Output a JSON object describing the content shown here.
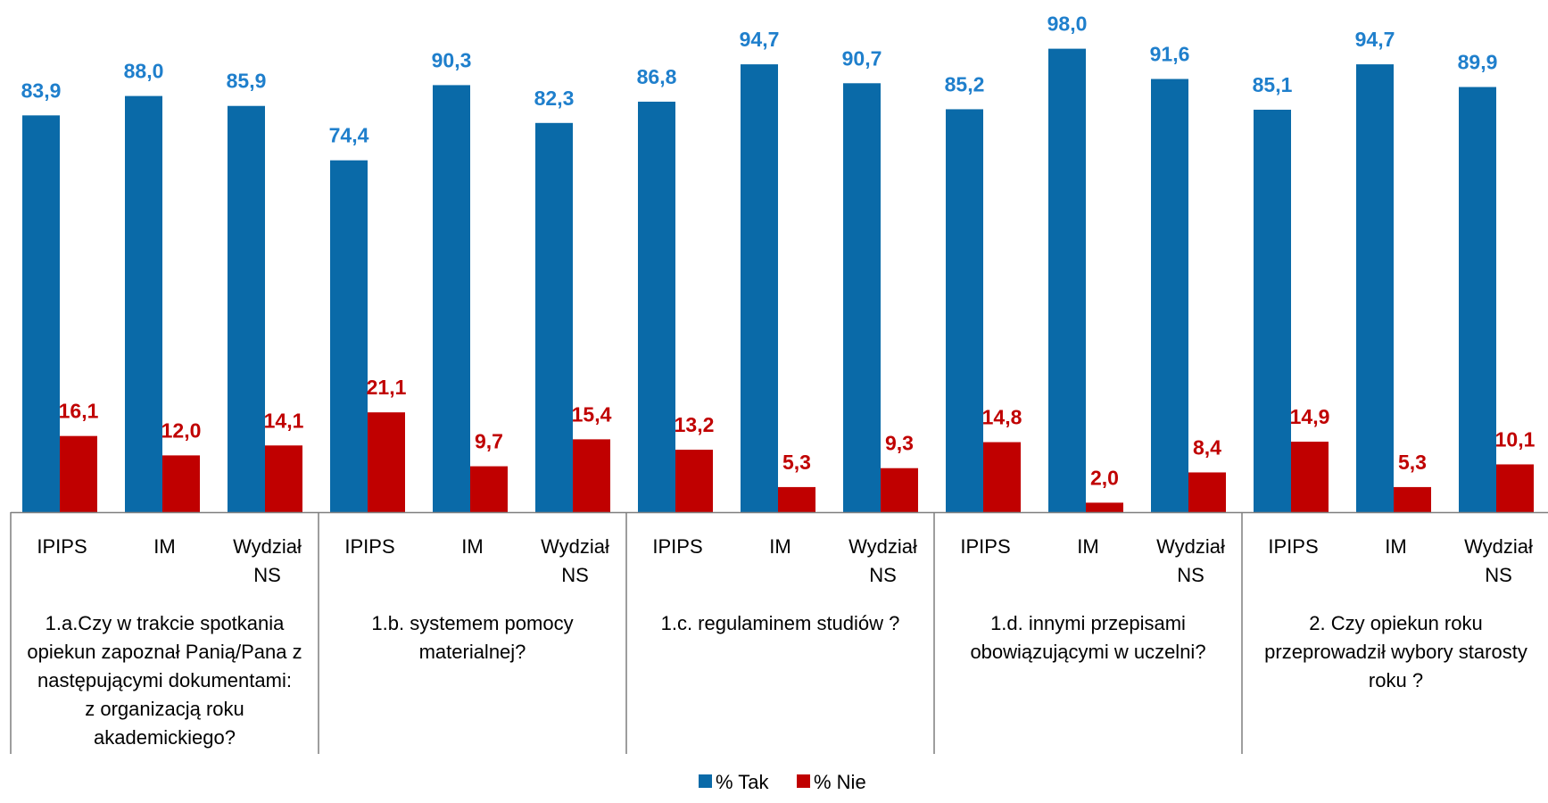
{
  "chart_data": {
    "type": "bar",
    "title": "",
    "xlabel": "",
    "ylabel": "",
    "ylim": [
      0,
      100
    ],
    "grid": false,
    "legend_position": "bottom",
    "groups": [
      {
        "label_lines": [
          "1.a.Czy w trakcie spotkania",
          "opiekun zapoznał Panią/Pana z",
          "następującymi dokumentami:",
          "z organizacją roku",
          "akademickiego?"
        ],
        "categories": [
          "IPIPS",
          "IM",
          "Wydział NS"
        ]
      },
      {
        "label_lines": [
          "1.b.  systemem pomocy",
          "materialnej?"
        ],
        "categories": [
          "IPIPS",
          "IM",
          "Wydział NS"
        ]
      },
      {
        "label_lines": [
          "1.c.   regulaminem studiów ?"
        ],
        "categories": [
          "IPIPS",
          "IM",
          "Wydział NS"
        ]
      },
      {
        "label_lines": [
          "1.d. innymi przepisami",
          "obowiązującymi w uczelni?"
        ],
        "categories": [
          "IPIPS",
          "IM",
          "Wydział NS"
        ]
      },
      {
        "label_lines": [
          "2. Czy opiekun roku",
          "przeprowadził wybory starosty",
          "roku ?"
        ],
        "categories": [
          "IPIPS",
          "IM",
          "Wydział NS"
        ]
      }
    ],
    "series": [
      {
        "name": "% Tak",
        "color": "#0A6AA8",
        "label_color": "#1F7FCC",
        "values": [
          83.9,
          88.0,
          85.9,
          74.4,
          90.3,
          82.3,
          86.8,
          94.7,
          90.7,
          85.2,
          98.0,
          91.6,
          85.1,
          94.7,
          89.9
        ],
        "labels": [
          "83,9",
          "88,0",
          "85,9",
          "74,4",
          "90,3",
          "82,3",
          "86,8",
          "94,7",
          "90,7",
          "85,2",
          "98,0",
          "91,6",
          "85,1",
          "94,7",
          "89,9"
        ]
      },
      {
        "name": "% Nie",
        "color": "#C00000",
        "label_color": "#C00000",
        "values": [
          16.1,
          12.0,
          14.1,
          21.1,
          9.7,
          15.4,
          13.2,
          5.3,
          9.3,
          14.8,
          2.0,
          8.4,
          14.9,
          5.3,
          10.1
        ],
        "labels": [
          "16,1",
          "12,0",
          "14,1",
          "21,1",
          "9,7",
          "15,4",
          "13,2",
          "5,3",
          "9,3",
          "14,8",
          "2,0",
          "8,4",
          "14,9",
          "5,3",
          "10,1"
        ]
      }
    ]
  }
}
